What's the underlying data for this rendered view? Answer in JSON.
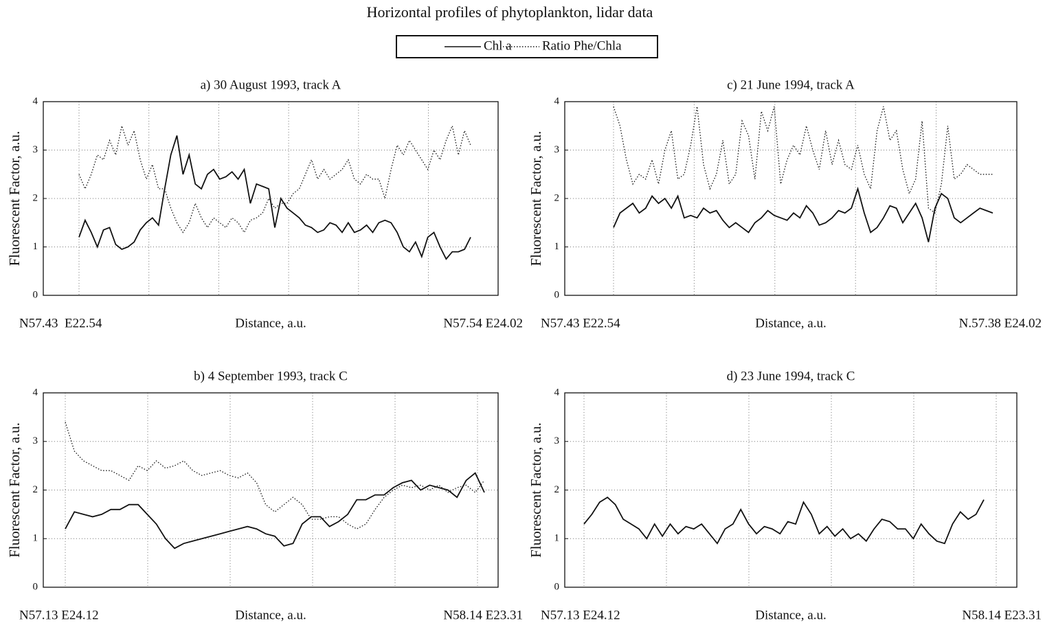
{
  "title": "Horizontal profiles of phytoplankton, lidar data",
  "chart_data": [
    {
      "type": "line",
      "title": "a) 30 August 1993, track A",
      "ylabel": "Fluorescent  Factor, a.u.",
      "xlabel": "Distance, a.u.",
      "x_start_label": "N57.43  E22.54",
      "x_end_label": "N57.54 E24.02",
      "ylim": [
        0,
        4
      ],
      "yticks": [
        0,
        1,
        2,
        3,
        4
      ],
      "grid": true,
      "series": [
        {
          "name": "Chl a",
          "color": "#111111",
          "style": "solid",
          "values": [
            1.2,
            1.55,
            1.3,
            1.0,
            1.35,
            1.4,
            1.05,
            0.95,
            1.0,
            1.1,
            1.35,
            1.5,
            1.6,
            1.45,
            2.2,
            2.9,
            3.3,
            2.5,
            2.9,
            2.3,
            2.2,
            2.5,
            2.6,
            2.4,
            2.45,
            2.55,
            2.4,
            2.6,
            1.9,
            2.3,
            2.25,
            2.2,
            1.4,
            2.0,
            1.8,
            1.7,
            1.6,
            1.45,
            1.4,
            1.3,
            1.35,
            1.5,
            1.45,
            1.3,
            1.5,
            1.3,
            1.35,
            1.45,
            1.3,
            1.5,
            1.55,
            1.5,
            1.3,
            1.0,
            0.9,
            1.1,
            0.8,
            1.2,
            1.3,
            1.0,
            0.75,
            0.9,
            0.9,
            0.95,
            1.2
          ]
        },
        {
          "name": "Ratio Phe/Chla",
          "color": "#111111",
          "style": "dotted",
          "values": [
            2.5,
            2.2,
            2.5,
            2.9,
            2.8,
            3.2,
            2.9,
            3.5,
            3.1,
            3.4,
            2.8,
            2.4,
            2.7,
            2.2,
            2.2,
            1.8,
            1.5,
            1.3,
            1.5,
            1.9,
            1.6,
            1.4,
            1.6,
            1.5,
            1.4,
            1.6,
            1.5,
            1.3,
            1.55,
            1.6,
            1.7,
            2.0,
            1.8,
            1.9,
            1.9,
            2.1,
            2.2,
            2.5,
            2.8,
            2.4,
            2.6,
            2.4,
            2.5,
            2.6,
            2.8,
            2.4,
            2.3,
            2.5,
            2.4,
            2.4,
            2.0,
            2.6,
            3.1,
            2.9,
            3.2,
            3.0,
            2.8,
            2.6,
            3.0,
            2.8,
            3.2,
            3.5,
            2.9,
            3.4,
            3.1
          ]
        }
      ]
    },
    {
      "type": "line",
      "title": "b) 4 September 1993, track C",
      "ylabel": "Fluorescent Factor, a.u.",
      "xlabel": "Distance, a.u.",
      "x_start_label": "N57.13 E24.12",
      "x_end_label": "N58.14 E23.31",
      "ylim": [
        0,
        4
      ],
      "yticks": [
        0,
        1,
        2,
        3,
        4
      ],
      "grid": true,
      "series": [
        {
          "name": "Chl a",
          "color": "#111111",
          "style": "solid",
          "values": [
            1.2,
            1.55,
            1.5,
            1.45,
            1.5,
            1.6,
            1.6,
            1.7,
            1.7,
            1.5,
            1.3,
            1.0,
            0.8,
            0.9,
            0.95,
            1.0,
            1.05,
            1.1,
            1.15,
            1.2,
            1.25,
            1.2,
            1.1,
            1.05,
            0.85,
            0.9,
            1.3,
            1.45,
            1.45,
            1.25,
            1.35,
            1.5,
            1.8,
            1.8,
            1.9,
            1.9,
            2.05,
            2.15,
            2.2,
            2.0,
            2.1,
            2.05,
            2.0,
            1.85,
            2.2,
            2.35,
            1.95
          ]
        },
        {
          "name": "Ratio Phe/Chla",
          "color": "#111111",
          "style": "dotted",
          "values": [
            3.4,
            2.8,
            2.6,
            2.5,
            2.4,
            2.4,
            2.3,
            2.2,
            2.5,
            2.4,
            2.6,
            2.45,
            2.5,
            2.6,
            2.4,
            2.3,
            2.35,
            2.4,
            2.3,
            2.25,
            2.35,
            2.15,
            1.7,
            1.55,
            1.7,
            1.85,
            1.7,
            1.4,
            1.4,
            1.45,
            1.45,
            1.3,
            1.2,
            1.3,
            1.6,
            1.85,
            2.0,
            2.1,
            2.05,
            2.1,
            2.0,
            2.1,
            1.95,
            2.05,
            2.1,
            1.95,
            2.2
          ]
        }
      ]
    },
    {
      "type": "line",
      "title": "c) 21 June 1994, track A",
      "ylabel": "Fluorescent Factor, a.u.",
      "xlabel": "Distance, a.u.",
      "x_start_label": "N57.43 E22.54",
      "x_end_label": "N.57.38 E24.02",
      "ylim": [
        0,
        4
      ],
      "yticks": [
        0,
        1,
        2,
        3,
        4
      ],
      "grid": true,
      "series": [
        {
          "name": "Chl a",
          "color": "#111111",
          "style": "solid",
          "values": [
            1.4,
            1.7,
            1.8,
            1.9,
            1.7,
            1.8,
            2.05,
            1.9,
            2.0,
            1.8,
            2.05,
            1.6,
            1.65,
            1.6,
            1.8,
            1.7,
            1.75,
            1.55,
            1.4,
            1.5,
            1.4,
            1.3,
            1.5,
            1.6,
            1.75,
            1.65,
            1.6,
            1.55,
            1.7,
            1.6,
            1.85,
            1.7,
            1.45,
            1.5,
            1.6,
            1.75,
            1.7,
            1.8,
            2.2,
            1.7,
            1.3,
            1.4,
            1.6,
            1.85,
            1.8,
            1.5,
            1.7,
            1.9,
            1.6,
            1.1,
            1.8,
            2.1,
            2.0,
            1.6,
            1.5,
            1.6,
            1.7,
            1.8,
            1.75,
            1.7
          ]
        },
        {
          "name": "Ratio Phe/Chla",
          "color": "#111111",
          "style": "dotted",
          "values": [
            3.9,
            3.5,
            2.8,
            2.3,
            2.5,
            2.4,
            2.8,
            2.3,
            3.0,
            3.4,
            2.4,
            2.5,
            3.1,
            3.9,
            2.7,
            2.2,
            2.5,
            3.2,
            2.3,
            2.5,
            3.6,
            3.3,
            2.4,
            3.8,
            3.4,
            3.9,
            2.3,
            2.8,
            3.1,
            2.9,
            3.5,
            3.0,
            2.6,
            3.4,
            2.7,
            3.2,
            2.7,
            2.6,
            3.1,
            2.5,
            2.2,
            3.4,
            3.9,
            3.2,
            3.4,
            2.6,
            2.1,
            2.4,
            3.6,
            1.8,
            1.7,
            2.3,
            3.5,
            2.4,
            2.5,
            2.7,
            2.6,
            2.5,
            2.5,
            2.5
          ]
        }
      ]
    },
    {
      "type": "line",
      "title": "d) 23 June 1994, track C",
      "ylabel": "Fluorescent Factor, a.u.",
      "xlabel": "Distance, a.u.",
      "x_start_label": "N57.13 E24.12",
      "x_end_label": "N58.14 E23.31",
      "ylim": [
        0,
        4
      ],
      "yticks": [
        0,
        1,
        2,
        3,
        4
      ],
      "grid": true,
      "series": [
        {
          "name": "Chl a",
          "color": "#111111",
          "style": "solid",
          "values": [
            1.3,
            1.5,
            1.75,
            1.85,
            1.7,
            1.4,
            1.3,
            1.2,
            1.0,
            1.3,
            1.05,
            1.3,
            1.1,
            1.25,
            1.2,
            1.3,
            1.1,
            0.9,
            1.2,
            1.3,
            1.6,
            1.3,
            1.1,
            1.25,
            1.2,
            1.1,
            1.35,
            1.3,
            1.75,
            1.5,
            1.1,
            1.25,
            1.05,
            1.2,
            1.0,
            1.1,
            0.95,
            1.2,
            1.4,
            1.35,
            1.2,
            1.2,
            1.0,
            1.3,
            1.1,
            0.95,
            0.9,
            1.3,
            1.55,
            1.4,
            1.5,
            1.8
          ]
        }
      ]
    }
  ]
}
